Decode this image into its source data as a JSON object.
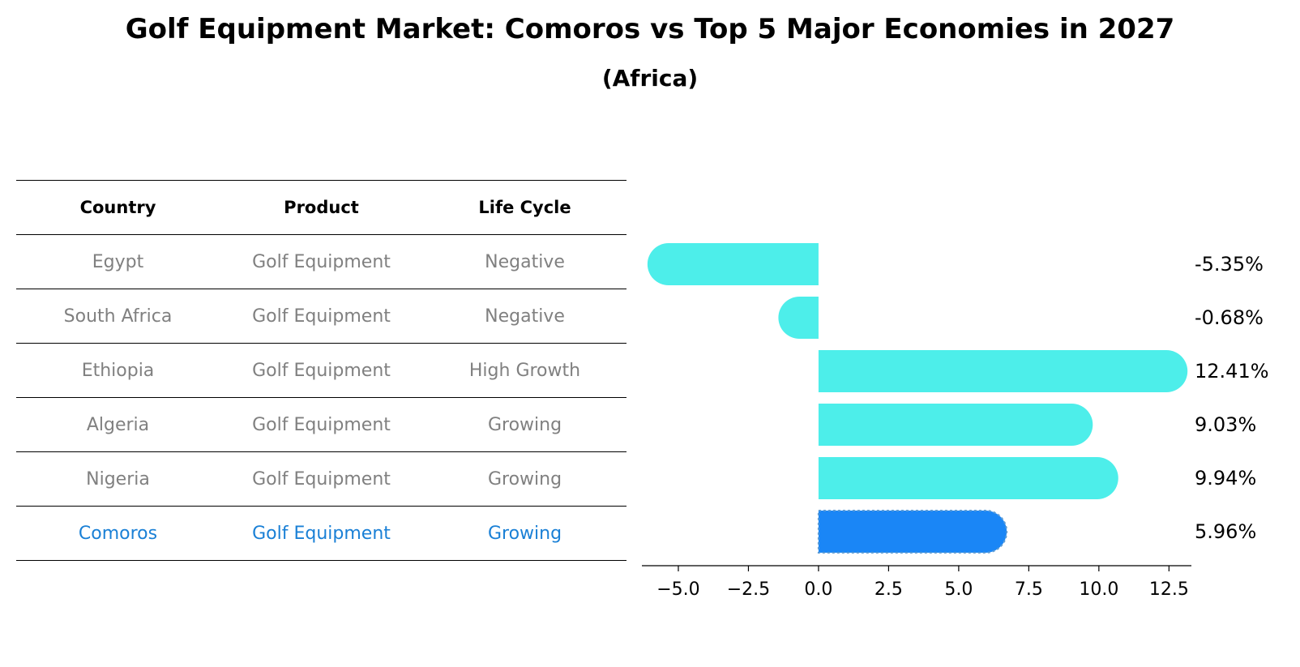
{
  "title": "Golf Equipment Market: Comoros vs Top 5 Major Economies in 2027",
  "subtitle": "(Africa)",
  "table": {
    "headers": [
      "Country",
      "Product",
      "Life Cycle"
    ],
    "rows": [
      {
        "country": "Egypt",
        "product": "Golf Equipment",
        "life_cycle": "Negative"
      },
      {
        "country": "South Africa",
        "product": "Golf Equipment",
        "life_cycle": "Negative"
      },
      {
        "country": "Ethiopia",
        "product": "Golf Equipment",
        "life_cycle": "High Growth"
      },
      {
        "country": "Algeria",
        "product": "Golf Equipment",
        "life_cycle": "Growing"
      },
      {
        "country": "Nigeria",
        "product": "Golf Equipment",
        "life_cycle": "Growing"
      },
      {
        "country": "Comoros",
        "product": "Golf Equipment",
        "life_cycle": "Growing"
      }
    ]
  },
  "chart_data": {
    "type": "bar",
    "orientation": "horizontal",
    "categories": [
      "Egypt",
      "South Africa",
      "Ethiopia",
      "Algeria",
      "Nigeria",
      "Comoros"
    ],
    "values": [
      -5.35,
      -0.68,
      12.41,
      9.03,
      9.94,
      5.96
    ],
    "value_labels": [
      "-5.35%",
      "-0.68%",
      "12.41%",
      "9.03%",
      "9.94%",
      "5.96%"
    ],
    "highlight": "Comoros",
    "xlim": [
      -6.3,
      13.3
    ],
    "xticks": [
      -5.0,
      -2.5,
      0.0,
      2.5,
      5.0,
      7.5,
      10.0,
      12.5
    ],
    "xtick_labels": [
      "−5.0",
      "−2.5",
      "0.0",
      "2.5",
      "5.0",
      "7.5",
      "10.0",
      "12.5"
    ],
    "colors": {
      "default": "#4deeea",
      "highlight": "#1a86f6"
    }
  }
}
